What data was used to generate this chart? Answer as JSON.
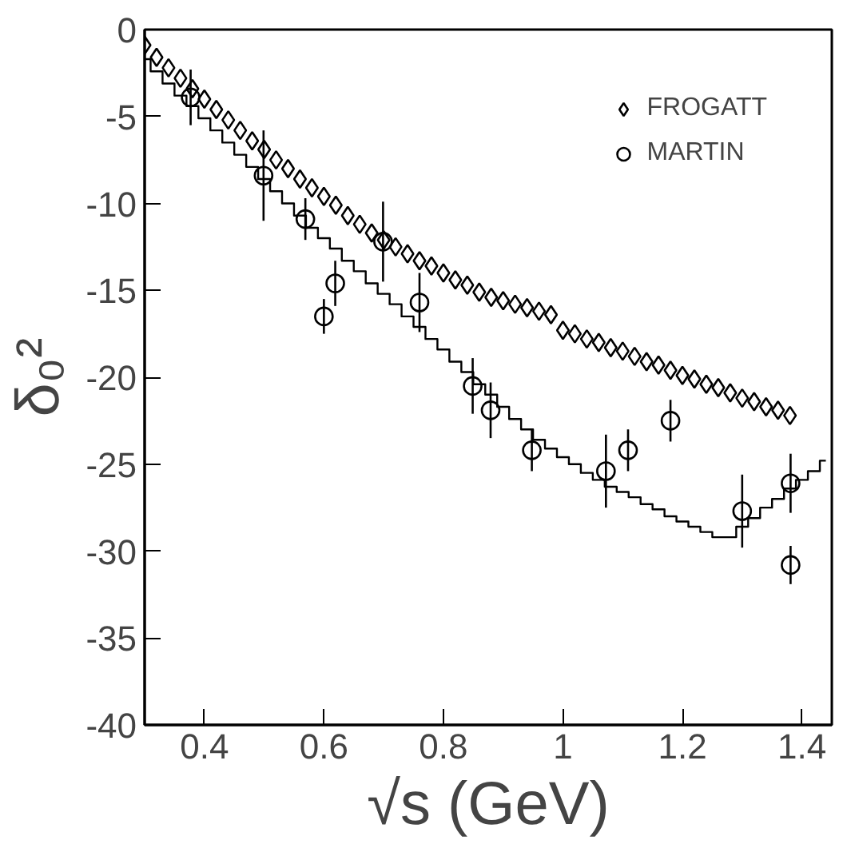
{
  "chart_data": {
    "type": "scatter",
    "xlabel": "√s (GeV)",
    "ylabel": "δ₀²",
    "xlim": [
      0.3,
      1.45
    ],
    "ylim": [
      -40,
      0
    ],
    "xticks": [
      0.4,
      0.6,
      0.8,
      1,
      1.2,
      1.4
    ],
    "yticks": [
      -40,
      -35,
      -30,
      -25,
      -20,
      -15,
      -10,
      -5,
      0
    ],
    "grid": false,
    "legend": "top right",
    "series": [
      {
        "name": "FROGATT",
        "marker": "diamond",
        "color": "#000000",
        "x": [
          0.3,
          0.32,
          0.34,
          0.36,
          0.38,
          0.4,
          0.42,
          0.44,
          0.46,
          0.48,
          0.5,
          0.52,
          0.54,
          0.56,
          0.58,
          0.6,
          0.62,
          0.64,
          0.66,
          0.68,
          0.7,
          0.72,
          0.74,
          0.76,
          0.78,
          0.8,
          0.82,
          0.84,
          0.86,
          0.88,
          0.9,
          0.92,
          0.94,
          0.96,
          0.98,
          1.0,
          1.02,
          1.04,
          1.06,
          1.08,
          1.1,
          1.12,
          1.14,
          1.16,
          1.18,
          1.2,
          1.22,
          1.24,
          1.26,
          1.28,
          1.3,
          1.32,
          1.34,
          1.36,
          1.38
        ],
        "values": [
          -0.9,
          -1.6,
          -2.2,
          -2.8,
          -3.4,
          -4.0,
          -4.6,
          -5.2,
          -5.8,
          -6.4,
          -6.9,
          -7.5,
          -8.0,
          -8.6,
          -9.1,
          -9.6,
          -10.1,
          -10.7,
          -11.2,
          -11.7,
          -12.1,
          -12.5,
          -12.9,
          -13.3,
          -13.6,
          -14.0,
          -14.4,
          -14.7,
          -15.1,
          -15.4,
          -15.6,
          -15.8,
          -16.0,
          -16.2,
          -16.4,
          -17.3,
          -17.5,
          -17.8,
          -18.0,
          -18.3,
          -18.5,
          -18.8,
          -19.1,
          -19.3,
          -19.6,
          -19.9,
          -20.1,
          -20.4,
          -20.6,
          -20.9,
          -21.2,
          -21.4,
          -21.7,
          -21.9,
          -22.2
        ]
      },
      {
        "name": "MARTIN",
        "marker": "circle",
        "color": "#000000",
        "x": [
          0.377,
          0.499,
          0.569,
          0.619,
          0.6,
          0.699,
          0.76,
          0.849,
          0.879,
          0.948,
          1.072,
          1.109,
          1.18,
          1.3,
          1.381,
          1.381
        ],
        "values": [
          -3.9,
          -8.4,
          -10.9,
          -14.6,
          -16.5,
          -12.2,
          -15.7,
          -20.5,
          -21.9,
          -24.2,
          -25.4,
          -24.2,
          -22.5,
          -27.7,
          -26.1,
          -30.8
        ],
        "errors": [
          1.6,
          2.6,
          1.2,
          1.3,
          1.0,
          2.3,
          1.7,
          1.6,
          1.6,
          1.2,
          2.1,
          1.2,
          1.2,
          2.1,
          1.7,
          1.1
        ]
      },
      {
        "type": "step",
        "color": "#000000",
        "x": [
          0.3,
          0.32,
          0.34,
          0.36,
          0.38,
          0.4,
          0.42,
          0.44,
          0.46,
          0.48,
          0.5,
          0.52,
          0.54,
          0.56,
          0.58,
          0.6,
          0.62,
          0.64,
          0.66,
          0.68,
          0.7,
          0.72,
          0.74,
          0.76,
          0.78,
          0.8,
          0.82,
          0.84,
          0.86,
          0.88,
          0.9,
          0.92,
          0.94,
          0.96,
          0.98,
          1.0,
          1.02,
          1.04,
          1.06,
          1.08,
          1.1,
          1.12,
          1.14,
          1.16,
          1.18,
          1.2,
          1.22,
          1.24,
          1.26,
          1.28,
          1.3,
          1.32,
          1.34,
          1.36,
          1.38,
          1.4,
          1.42,
          1.44
        ],
        "values": [
          -1.7,
          -2.4,
          -3.1,
          -3.8,
          -4.4,
          -5.1,
          -5.8,
          -6.5,
          -7.2,
          -7.9,
          -8.6,
          -9.3,
          -10.0,
          -10.7,
          -11.4,
          -12.0,
          -12.6,
          -13.3,
          -13.9,
          -14.6,
          -15.2,
          -15.8,
          -16.5,
          -17.1,
          -17.8,
          -18.4,
          -19.1,
          -19.7,
          -20.4,
          -21.0,
          -21.7,
          -22.4,
          -23.0,
          -23.6,
          -24.1,
          -24.6,
          -25.0,
          -25.5,
          -25.9,
          -26.3,
          -26.6,
          -26.9,
          -27.3,
          -27.6,
          -28.0,
          -28.3,
          -28.6,
          -28.9,
          -29.2,
          -29.2,
          -28.6,
          -28.1,
          -27.5,
          -27.0,
          -26.4,
          -25.9,
          -25.4,
          -24.8
        ]
      }
    ]
  }
}
